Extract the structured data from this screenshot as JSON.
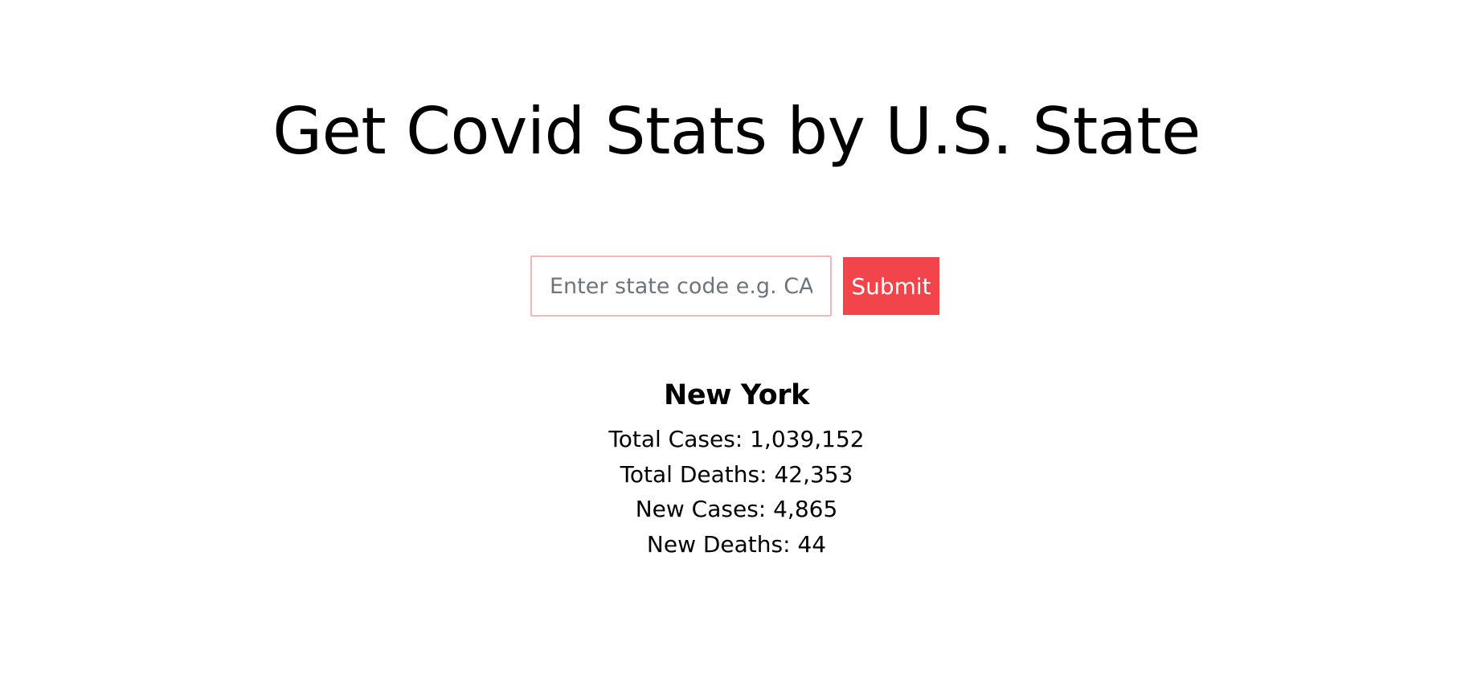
{
  "page": {
    "title": "Get Covid Stats by U.S. State"
  },
  "search": {
    "placeholder": "Enter state code e.g. CA",
    "value": "",
    "submit_label": "Submit"
  },
  "result": {
    "state_name": "New York",
    "stats": [
      {
        "label": "Total Cases",
        "value": "1,039,152",
        "text": "Total Cases: 1,039,152"
      },
      {
        "label": "Total Deaths",
        "value": "42,353",
        "text": "Total Deaths: 42,353"
      },
      {
        "label": "New Cases",
        "value": "4,865",
        "text": "New Cases: 4,865"
      },
      {
        "label": "New Deaths",
        "value": "44",
        "text": "New Deaths: 44"
      }
    ]
  },
  "colors": {
    "accent": "#f1444b",
    "input_border": "#f5b5b8",
    "placeholder": "#6c757d",
    "text": "#000000"
  }
}
